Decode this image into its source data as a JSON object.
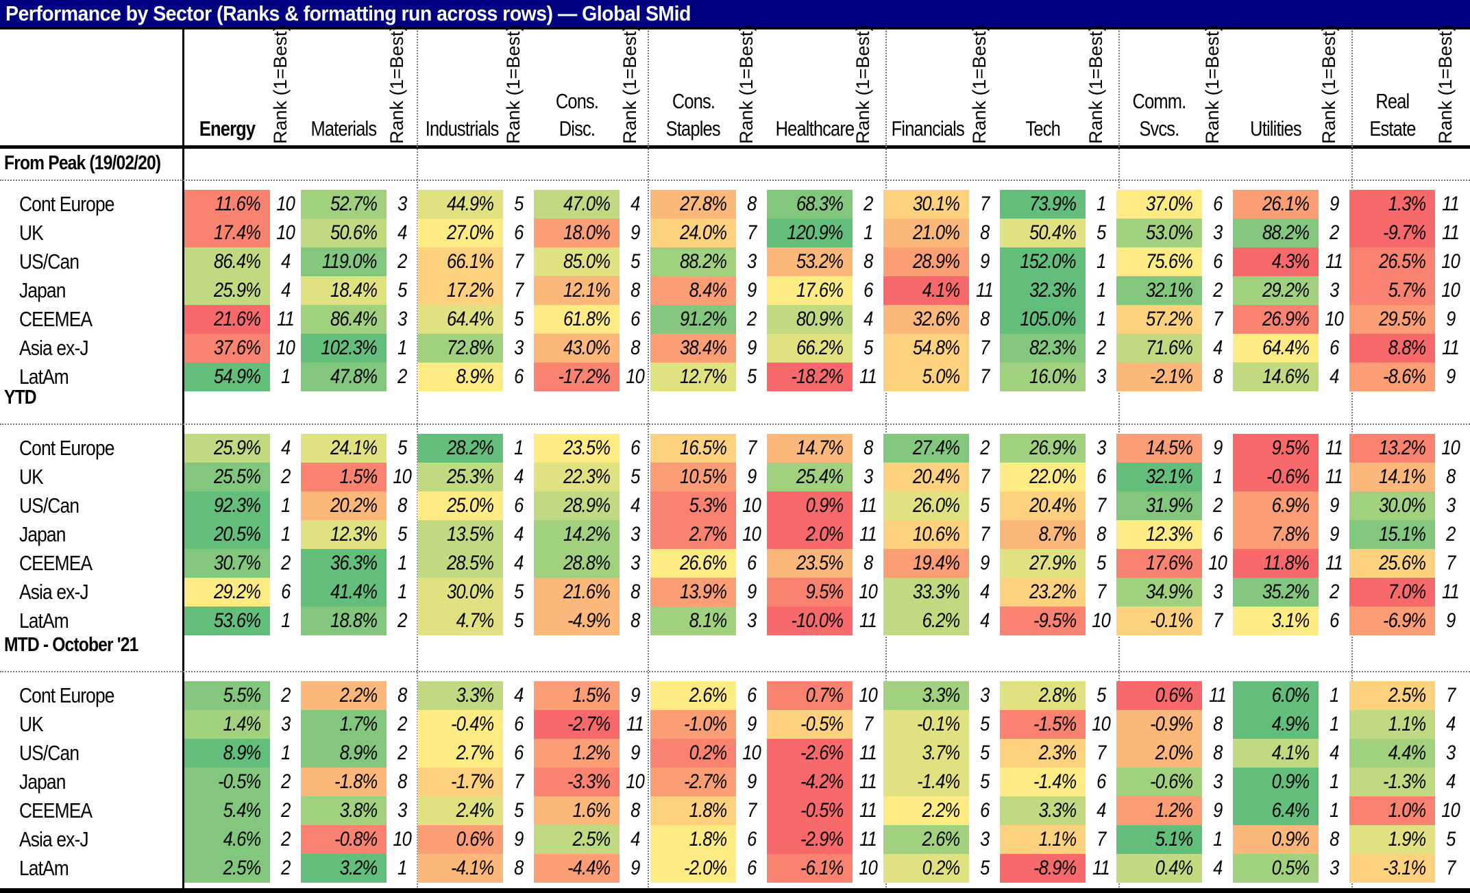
{
  "title": "Performance by Sector (Ranks & formatting run across rows) — Global SMid",
  "rank_header": "Rank (1=Best)",
  "sectors": [
    {
      "line1": "",
      "line2": "Energy"
    },
    {
      "line1": "",
      "line2": "Materials"
    },
    {
      "line1": "",
      "line2": "Industrials"
    },
    {
      "line1": "Cons.",
      "line2": "Disc."
    },
    {
      "line1": "Cons.",
      "line2": "Staples"
    },
    {
      "line1": "",
      "line2": "Healthcare"
    },
    {
      "line1": "",
      "line2": "Financials"
    },
    {
      "line1": "",
      "line2": "Tech"
    },
    {
      "line1": "Comm.",
      "line2": "Svcs."
    },
    {
      "line1": "",
      "line2": "Utilities"
    },
    {
      "line1": "Real",
      "line2": "Estate"
    }
  ],
  "color_scale": {
    "best": "#63be7b",
    "mid": "#ffeb84",
    "worst": "#f8696b"
  },
  "sections": [
    {
      "label": "From Peak (19/02/20)",
      "rows": [
        {
          "region": "Cont Europe",
          "values": [
            "11.6%",
            "52.7%",
            "44.9%",
            "47.0%",
            "27.8%",
            "68.3%",
            "30.1%",
            "73.9%",
            "37.0%",
            "26.1%",
            "1.3%"
          ],
          "ranks": [
            10,
            3,
            5,
            4,
            8,
            2,
            7,
            1,
            6,
            9,
            11
          ]
        },
        {
          "region": "UK",
          "values": [
            "17.4%",
            "50.6%",
            "27.0%",
            "18.0%",
            "24.0%",
            "120.9%",
            "21.0%",
            "50.4%",
            "53.0%",
            "88.2%",
            "-9.7%"
          ],
          "ranks": [
            10,
            4,
            6,
            9,
            7,
            1,
            8,
            5,
            3,
            2,
            11
          ]
        },
        {
          "region": "US/Can",
          "values": [
            "86.4%",
            "119.0%",
            "66.1%",
            "85.0%",
            "88.2%",
            "53.2%",
            "28.9%",
            "152.0%",
            "75.6%",
            "4.3%",
            "26.5%"
          ],
          "ranks": [
            4,
            2,
            7,
            5,
            3,
            8,
            9,
            1,
            6,
            11,
            10
          ]
        },
        {
          "region": "Japan",
          "values": [
            "25.9%",
            "18.4%",
            "17.2%",
            "12.1%",
            "8.4%",
            "17.6%",
            "4.1%",
            "32.3%",
            "32.1%",
            "29.2%",
            "5.7%"
          ],
          "ranks": [
            4,
            5,
            7,
            8,
            9,
            6,
            11,
            1,
            2,
            3,
            10
          ]
        },
        {
          "region": "CEEMEA",
          "values": [
            "21.6%",
            "86.4%",
            "64.4%",
            "61.8%",
            "91.2%",
            "80.9%",
            "32.6%",
            "105.0%",
            "57.2%",
            "26.9%",
            "29.5%"
          ],
          "ranks": [
            11,
            3,
            5,
            6,
            2,
            4,
            8,
            1,
            7,
            10,
            9
          ]
        },
        {
          "region": "Asia ex-J",
          "values": [
            "37.6%",
            "102.3%",
            "72.8%",
            "43.0%",
            "38.4%",
            "66.2%",
            "54.8%",
            "82.3%",
            "71.6%",
            "64.4%",
            "8.8%"
          ],
          "ranks": [
            10,
            1,
            3,
            8,
            9,
            5,
            7,
            2,
            4,
            6,
            11
          ]
        },
        {
          "region": "LatAm",
          "values": [
            "54.9%",
            "47.8%",
            "8.9%",
            "-17.2%",
            "12.7%",
            "-18.2%",
            "5.0%",
            "16.0%",
            "-2.1%",
            "14.6%",
            "-8.6%"
          ],
          "ranks": [
            1,
            2,
            6,
            10,
            5,
            11,
            7,
            3,
            8,
            4,
            9
          ]
        }
      ]
    },
    {
      "label": "YTD",
      "rows": [
        {
          "region": "Cont Europe",
          "values": [
            "25.9%",
            "24.1%",
            "28.2%",
            "23.5%",
            "16.5%",
            "14.7%",
            "27.4%",
            "26.9%",
            "14.5%",
            "9.5%",
            "13.2%"
          ],
          "ranks": [
            4,
            5,
            1,
            6,
            7,
            8,
            2,
            3,
            9,
            11,
            10
          ]
        },
        {
          "region": "UK",
          "values": [
            "25.5%",
            "1.5%",
            "25.3%",
            "22.3%",
            "10.5%",
            "25.4%",
            "20.4%",
            "22.0%",
            "32.1%",
            "-0.6%",
            "14.1%"
          ],
          "ranks": [
            2,
            10,
            4,
            5,
            9,
            3,
            7,
            6,
            1,
            11,
            8
          ]
        },
        {
          "region": "US/Can",
          "values": [
            "92.3%",
            "20.2%",
            "25.0%",
            "28.9%",
            "5.3%",
            "0.9%",
            "26.0%",
            "20.4%",
            "31.9%",
            "6.9%",
            "30.0%"
          ],
          "ranks": [
            1,
            8,
            6,
            4,
            10,
            11,
            5,
            7,
            2,
            9,
            3
          ]
        },
        {
          "region": "Japan",
          "values": [
            "20.5%",
            "12.3%",
            "13.5%",
            "14.2%",
            "2.7%",
            "2.0%",
            "10.6%",
            "8.7%",
            "12.3%",
            "7.8%",
            "15.1%"
          ],
          "ranks": [
            1,
            5,
            4,
            3,
            10,
            11,
            7,
            8,
            6,
            9,
            2
          ]
        },
        {
          "region": "CEEMEA",
          "values": [
            "30.7%",
            "36.3%",
            "28.5%",
            "28.8%",
            "26.6%",
            "23.5%",
            "19.4%",
            "27.9%",
            "17.6%",
            "11.8%",
            "25.6%"
          ],
          "ranks": [
            2,
            1,
            4,
            3,
            6,
            8,
            9,
            5,
            10,
            11,
            7
          ]
        },
        {
          "region": "Asia ex-J",
          "values": [
            "29.2%",
            "41.4%",
            "30.0%",
            "21.6%",
            "13.9%",
            "9.5%",
            "33.3%",
            "23.2%",
            "34.9%",
            "35.2%",
            "7.0%"
          ],
          "ranks": [
            6,
            1,
            5,
            8,
            9,
            10,
            4,
            7,
            3,
            2,
            11
          ]
        },
        {
          "region": "LatAm",
          "values": [
            "53.6%",
            "18.8%",
            "4.7%",
            "-4.9%",
            "8.1%",
            "-10.0%",
            "6.2%",
            "-9.5%",
            "-0.1%",
            "3.1%",
            "-6.9%"
          ],
          "ranks": [
            1,
            2,
            5,
            8,
            3,
            11,
            4,
            10,
            7,
            6,
            9
          ]
        }
      ]
    },
    {
      "label": "MTD - October '21",
      "rows": [
        {
          "region": "Cont Europe",
          "values": [
            "5.5%",
            "2.2%",
            "3.3%",
            "1.5%",
            "2.6%",
            "0.7%",
            "3.3%",
            "2.8%",
            "0.6%",
            "6.0%",
            "2.5%"
          ],
          "ranks": [
            2,
            8,
            4,
            9,
            6,
            10,
            3,
            5,
            11,
            1,
            7
          ]
        },
        {
          "region": "UK",
          "values": [
            "1.4%",
            "1.7%",
            "-0.4%",
            "-2.7%",
            "-1.0%",
            "-0.5%",
            "-0.1%",
            "-1.5%",
            "-0.9%",
            "4.9%",
            "1.1%"
          ],
          "ranks": [
            3,
            2,
            6,
            11,
            9,
            7,
            5,
            10,
            8,
            1,
            4
          ]
        },
        {
          "region": "US/Can",
          "values": [
            "8.9%",
            "8.9%",
            "2.7%",
            "1.2%",
            "0.2%",
            "-2.6%",
            "3.7%",
            "2.3%",
            "2.0%",
            "4.1%",
            "4.4%"
          ],
          "ranks": [
            1,
            2,
            6,
            9,
            10,
            11,
            5,
            7,
            8,
            4,
            3
          ]
        },
        {
          "region": "Japan",
          "values": [
            "-0.5%",
            "-1.8%",
            "-1.7%",
            "-3.3%",
            "-2.7%",
            "-4.2%",
            "-1.4%",
            "-1.4%",
            "-0.6%",
            "0.9%",
            "-1.3%"
          ],
          "ranks": [
            2,
            8,
            7,
            10,
            9,
            11,
            5,
            6,
            3,
            1,
            4
          ]
        },
        {
          "region": "CEEMEA",
          "values": [
            "5.4%",
            "3.8%",
            "2.4%",
            "1.6%",
            "1.8%",
            "-0.5%",
            "2.2%",
            "3.3%",
            "1.2%",
            "6.4%",
            "1.0%"
          ],
          "ranks": [
            2,
            3,
            5,
            8,
            7,
            11,
            6,
            4,
            9,
            1,
            10
          ]
        },
        {
          "region": "Asia ex-J",
          "values": [
            "4.6%",
            "-0.8%",
            "0.6%",
            "2.5%",
            "1.8%",
            "-2.9%",
            "2.6%",
            "1.1%",
            "5.1%",
            "0.9%",
            "1.9%"
          ],
          "ranks": [
            2,
            10,
            9,
            4,
            6,
            11,
            3,
            7,
            1,
            8,
            5
          ]
        },
        {
          "region": "LatAm",
          "values": [
            "2.5%",
            "3.2%",
            "-4.1%",
            "-4.4%",
            "-2.0%",
            "-6.1%",
            "0.2%",
            "-8.9%",
            "0.4%",
            "0.5%",
            "-3.1%"
          ],
          "ranks": [
            2,
            1,
            8,
            9,
            6,
            10,
            5,
            11,
            4,
            3,
            7
          ]
        }
      ]
    }
  ]
}
